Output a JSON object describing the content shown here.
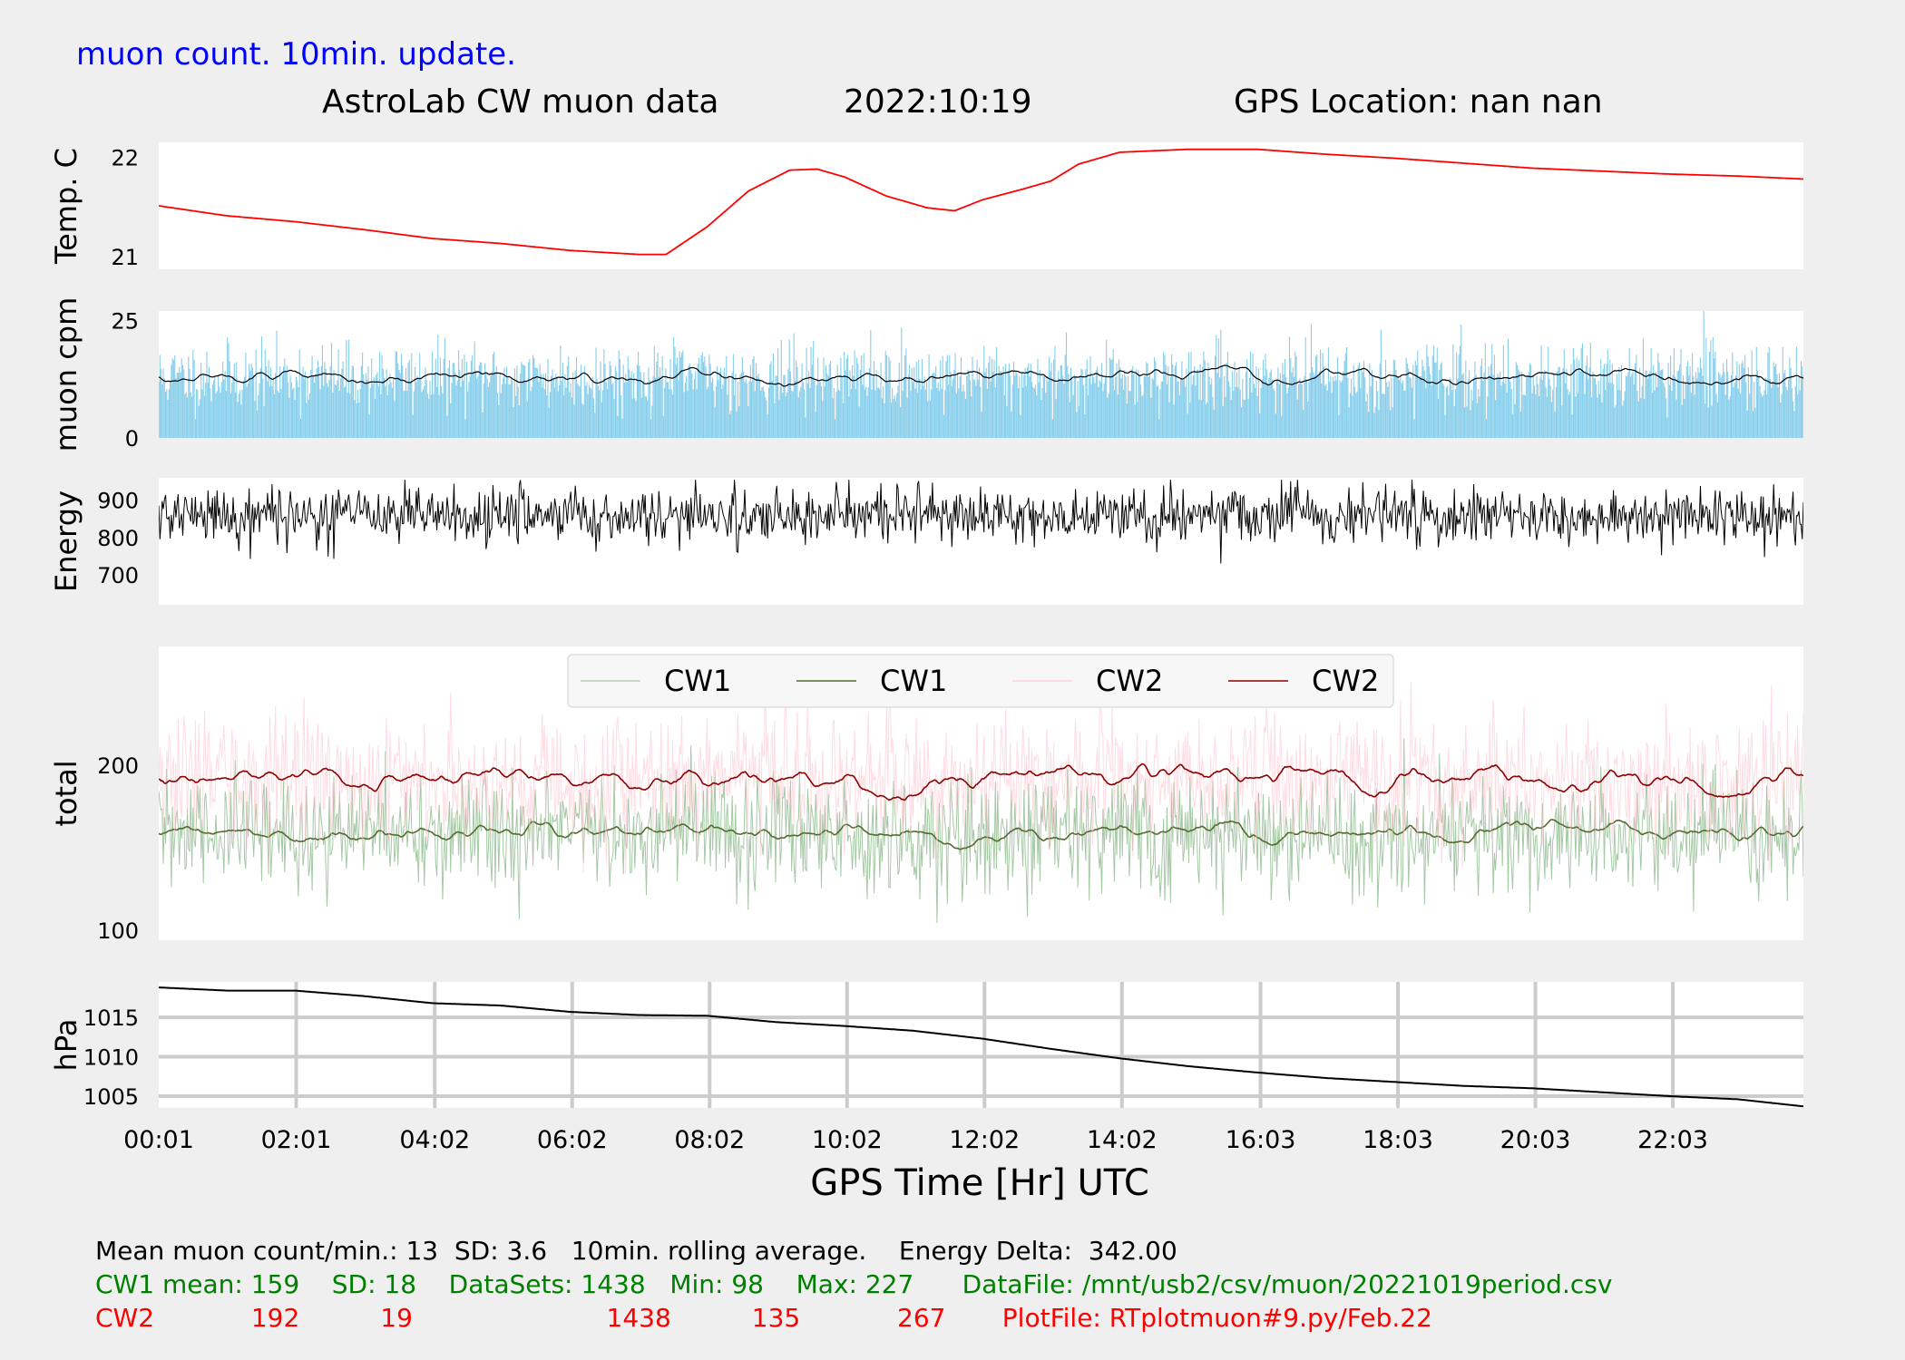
{
  "header": {
    "update_note": "muon count.  10min. update.",
    "title": "AstroLab CW muon data",
    "date": "2022:10:19",
    "gps_location": "GPS Location: nan   nan"
  },
  "colors": {
    "background": "#efefef",
    "panel": "#ffffff",
    "temp": "#ff0000",
    "muon_bars": "#87ceeb",
    "avg_line": "#000000",
    "cw1_raw": "#8fbc8f",
    "cw1_avg": "#556b2f",
    "cw2_raw": "#ffc0cb",
    "cw2_avg": "#8b0000",
    "update_note": "#0000ff",
    "cw1_text": "#008000",
    "cw2_text": "#ff0000"
  },
  "chart_data": {
    "type": "line",
    "x_axis_label": "GPS Time  [Hr] UTC",
    "x_range_hours": [
      0.0167,
      23.95
    ],
    "x_ticks": [
      {
        "h": 0.0167,
        "label": "00:01"
      },
      {
        "h": 2.0167,
        "label": "02:01"
      },
      {
        "h": 4.0333,
        "label": "04:02"
      },
      {
        "h": 6.0333,
        "label": "06:02"
      },
      {
        "h": 8.0333,
        "label": "08:02"
      },
      {
        "h": 10.0333,
        "label": "10:02"
      },
      {
        "h": 12.0333,
        "label": "12:02"
      },
      {
        "h": 14.0333,
        "label": "14:02"
      },
      {
        "h": 16.05,
        "label": "16:03"
      },
      {
        "h": 18.05,
        "label": "18:03"
      },
      {
        "h": 20.05,
        "label": "20:03"
      },
      {
        "h": 22.05,
        "label": "22:03"
      }
    ],
    "panels": [
      {
        "id": "temp",
        "ylabel": "Temp. C",
        "ylim": [
          20.87,
          22.15
        ],
        "grid": false,
        "yticks": [
          {
            "v": 21,
            "label": "21"
          },
          {
            "v": 22,
            "label": "22"
          }
        ],
        "series": [
          {
            "kind": "line",
            "points": [
              [
                0.02,
                21.51
              ],
              [
                1.0,
                21.41
              ],
              [
                2.0,
                21.35
              ],
              [
                3.0,
                21.27
              ],
              [
                4.0,
                21.18
              ],
              [
                5.0,
                21.13
              ],
              [
                6.0,
                21.06
              ],
              [
                7.0,
                21.02
              ],
              [
                7.4,
                21.02
              ],
              [
                8.0,
                21.3
              ],
              [
                8.6,
                21.66
              ],
              [
                9.2,
                21.87
              ],
              [
                9.6,
                21.88
              ],
              [
                10.0,
                21.8
              ],
              [
                10.6,
                21.61
              ],
              [
                11.2,
                21.49
              ],
              [
                11.6,
                21.46
              ],
              [
                12.0,
                21.57
              ],
              [
                12.6,
                21.68
              ],
              [
                13.0,
                21.76
              ],
              [
                13.4,
                21.93
              ],
              [
                14.0,
                22.05
              ],
              [
                15.0,
                22.08
              ],
              [
                16.0,
                22.08
              ],
              [
                17.0,
                22.03
              ],
              [
                18.0,
                21.99
              ],
              [
                19.0,
                21.94
              ],
              [
                20.0,
                21.89
              ],
              [
                21.0,
                21.86
              ],
              [
                22.0,
                21.83
              ],
              [
                23.0,
                21.81
              ],
              [
                23.95,
                21.78
              ]
            ]
          }
        ]
      },
      {
        "id": "muon",
        "ylabel": "muon cpm",
        "ylim": [
          0,
          27
        ],
        "grid": false,
        "yticks": [
          {
            "v": 0,
            "label": "0"
          },
          {
            "v": 25,
            "label": "25"
          }
        ],
        "series": [
          {
            "kind": "bars",
            "gen": {
              "mean": 13,
              "sd": 3.6,
              "min": 4,
              "max": 27,
              "seed": 11
            }
          },
          {
            "kind": "rolling",
            "gen": {
              "mean": 13,
              "amp": 1.6,
              "seed": 12
            }
          }
        ]
      },
      {
        "id": "energy",
        "ylabel": "Energy",
        "ylim": [
          620,
          960
        ],
        "grid": false,
        "yticks": [
          {
            "v": 700,
            "label": "700"
          },
          {
            "v": 800,
            "label": "800"
          },
          {
            "v": 900,
            "label": "900"
          }
        ],
        "series": [
          {
            "kind": "noise",
            "gen": {
              "mean": 860,
              "sd": 38,
              "min": 622,
              "max": 955,
              "seed": 21
            }
          }
        ]
      },
      {
        "id": "total",
        "ylabel": "total",
        "ylim": [
          94,
          272
        ],
        "grid": false,
        "yticks": [
          {
            "v": 100,
            "label": "100"
          },
          {
            "v": 200,
            "label": "200"
          }
        ],
        "series": [
          {
            "kind": "noise",
            "name": "CW1",
            "color": "cw1_raw",
            "gen": {
              "mean": 159,
              "sd": 18,
              "min": 98,
              "max": 227,
              "seed": 31
            }
          },
          {
            "kind": "rolling",
            "name": "CW1",
            "color": "cw1_avg",
            "gen": {
              "mean": 159,
              "amp": 6,
              "seed": 32
            }
          },
          {
            "kind": "noise",
            "name": "CW2",
            "color": "cw2_raw",
            "gen": {
              "mean": 192,
              "sd": 19,
              "min": 135,
              "max": 267,
              "seed": 33
            }
          },
          {
            "kind": "rolling",
            "name": "CW2",
            "color": "cw2_avg",
            "gen": {
              "mean": 192,
              "amp": 7,
              "seed": 34
            }
          }
        ],
        "legend": {
          "location": "top-center",
          "entries": [
            "CW1",
            "CW1",
            "CW2",
            "CW2"
          ]
        }
      },
      {
        "id": "pressure",
        "ylabel": "hPa",
        "ylim": [
          1003.5,
          1019.5
        ],
        "grid": true,
        "yticks": [
          {
            "v": 1005,
            "label": "1005"
          },
          {
            "v": 1010,
            "label": "1010"
          },
          {
            "v": 1015,
            "label": "1015"
          }
        ],
        "series": [
          {
            "kind": "line",
            "points": [
              [
                0.02,
                1018.8
              ],
              [
                1.0,
                1018.4
              ],
              [
                2.0,
                1018.4
              ],
              [
                3.0,
                1017.7
              ],
              [
                4.0,
                1016.8
              ],
              [
                5.0,
                1016.5
              ],
              [
                6.0,
                1015.7
              ],
              [
                7.0,
                1015.3
              ],
              [
                8.0,
                1015.2
              ],
              [
                9.0,
                1014.4
              ],
              [
                10.0,
                1013.9
              ],
              [
                11.0,
                1013.3
              ],
              [
                12.0,
                1012.3
              ],
              [
                13.0,
                1011.0
              ],
              [
                14.0,
                1009.8
              ],
              [
                15.0,
                1008.8
              ],
              [
                16.0,
                1008.0
              ],
              [
                17.0,
                1007.3
              ],
              [
                18.0,
                1006.8
              ],
              [
                19.0,
                1006.3
              ],
              [
                20.0,
                1006.0
              ],
              [
                21.0,
                1005.5
              ],
              [
                22.0,
                1005.0
              ],
              [
                23.0,
                1004.6
              ],
              [
                23.95,
                1003.7
              ]
            ]
          }
        ]
      }
    ]
  },
  "stats": {
    "line1": "Mean muon count/min.: 13  SD: 3.6   10min. rolling average.    Energy Delta:  342.00",
    "cw1_line": "CW1 mean: 159    SD: 18    DataSets: 1438   Min: 98    Max: 227      DataFile: /mnt/usb2/csv/muon/20221019period.csv",
    "cw2_line": "CW2            192          19                        1438          135            267       PlotFile: RTplotmuon#9.py/Feb.22"
  }
}
